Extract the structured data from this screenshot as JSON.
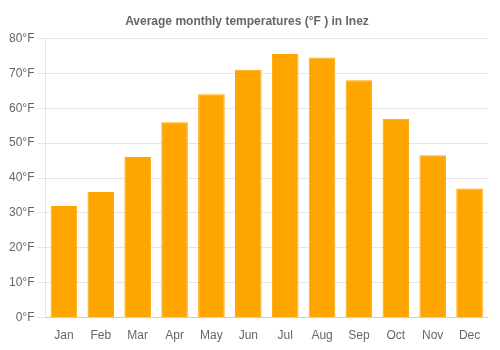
{
  "chart_data": {
    "type": "bar",
    "title": "Average monthly temperatures (°F ) in Inez",
    "categories": [
      "Jan",
      "Feb",
      "Mar",
      "Apr",
      "May",
      "Jun",
      "Jul",
      "Aug",
      "Sep",
      "Oct",
      "Nov",
      "Dec"
    ],
    "values": [
      32,
      36,
      46,
      56,
      64,
      71,
      75.5,
      74.5,
      68,
      57,
      46.5,
      37
    ],
    "color": "#FFA500",
    "ylim": [
      0,
      80
    ],
    "yticks": [
      {
        "value": 0,
        "label": "0°F"
      },
      {
        "value": 10,
        "label": "10°F"
      },
      {
        "value": 20,
        "label": "20°F"
      },
      {
        "value": 30,
        "label": "30°F"
      },
      {
        "value": 40,
        "label": "40°F"
      },
      {
        "value": 50,
        "label": "50°F"
      },
      {
        "value": 60,
        "label": "60°F"
      },
      {
        "value": 70,
        "label": "70°F"
      },
      {
        "value": 80,
        "label": "80°F"
      }
    ],
    "grid": true
  }
}
